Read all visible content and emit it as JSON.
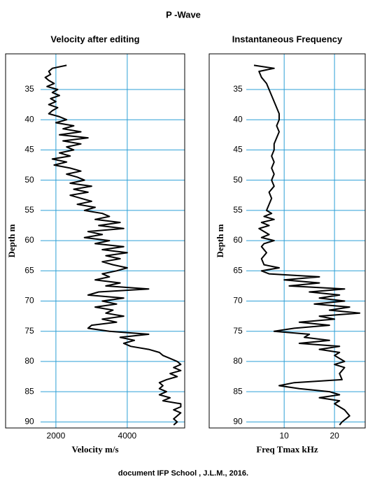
{
  "title": "P -Wave",
  "footer": "document IFP School , J.L.M., 2016.",
  "chart_data": [
    {
      "type": "line",
      "title": "Velocity after editing",
      "xlabel": "Depth m",
      "ylabel": "Velocity m/s",
      "xlim": [
        29.1,
        91
      ],
      "xticks": [
        35,
        40,
        45,
        50,
        55,
        60,
        65,
        70,
        75,
        80,
        85,
        90
      ],
      "ylim": [
        590,
        5610
      ],
      "yticks": [
        2000,
        4000
      ],
      "grid": true,
      "x": [
        31,
        31.5,
        32,
        32.5,
        33,
        33.5,
        34,
        34.5,
        35,
        35.5,
        36,
        36.5,
        37,
        37.5,
        38,
        38.5,
        39,
        39.5,
        40,
        40.5,
        41,
        41.5,
        42,
        42.5,
        43,
        43.5,
        44,
        44.5,
        45,
        45.5,
        46,
        46.5,
        47,
        47.5,
        48,
        48.5,
        49,
        49.5,
        50,
        50.5,
        51,
        51.5,
        52,
        52.5,
        53,
        53.5,
        54,
        54.5,
        55,
        55.5,
        56,
        56.5,
        57,
        57.5,
        58,
        58.5,
        59,
        59.5,
        60,
        60.5,
        61,
        61.5,
        62,
        62.5,
        63,
        63.5,
        64,
        64.5,
        65,
        65.5,
        66,
        66.5,
        67,
        67.5,
        68,
        68.5,
        69,
        69.5,
        70,
        70.5,
        71,
        71.5,
        72,
        72.5,
        73,
        73.5,
        74,
        74.5,
        75,
        75.5,
        76,
        76.5,
        77,
        77.5,
        78,
        78.5,
        79,
        79.5,
        80,
        80.5,
        81,
        81.5,
        82,
        82.5,
        83,
        83.5,
        84,
        84.5,
        85,
        85.5,
        86,
        86.5,
        87,
        87.5,
        88,
        88.5,
        89,
        89.5,
        90,
        90.5
      ],
      "series": [
        {
          "color": "#000000",
          "values": [
            2300,
            1900,
            1800,
            1850,
            1700,
            1800,
            1950,
            1750,
            2050,
            1900,
            2100,
            1850,
            2000,
            1800,
            2050,
            1900,
            1800,
            2100,
            2300,
            2000,
            2500,
            2200,
            2700,
            2100,
            2900,
            2200,
            2700,
            2300,
            2500,
            2100,
            2400,
            1900,
            2300,
            1950,
            2400,
            2700,
            2300,
            2600,
            2800,
            2400,
            3000,
            2500,
            2900,
            2400,
            2700,
            3000,
            2600,
            3100,
            2800,
            3300,
            3500,
            3100,
            3800,
            3200,
            3900,
            2900,
            3300,
            2800,
            3500,
            3100,
            3900,
            3300,
            4000,
            3400,
            3800,
            3300,
            3600,
            4000,
            3700,
            3300,
            3500,
            3100,
            3800,
            3400,
            4600,
            3200,
            2900,
            3900,
            3300,
            3700,
            3100,
            3600,
            3400,
            3900,
            3300,
            3700,
            3000,
            2900,
            3500,
            4600,
            3800,
            4200,
            3900,
            4100,
            4600,
            4900,
            5000,
            5200,
            5400,
            5500,
            5300,
            5500,
            5200,
            5400,
            5100,
            4900,
            5000,
            4900,
            5100,
            4900,
            5200,
            5000,
            5500,
            5500,
            5300,
            5500,
            5400,
            5300,
            5400,
            5300
          ]
        }
      ]
    },
    {
      "type": "line",
      "title": "Instantaneous Frequency",
      "xlabel": "Depth m",
      "ylabel": "Freq Tmax kHz",
      "xlim": [
        29.1,
        91
      ],
      "xticks": [
        35,
        40,
        45,
        50,
        55,
        60,
        65,
        70,
        75,
        80,
        85,
        90
      ],
      "ylim": [
        -4.9,
        26.1
      ],
      "yticks": [
        10,
        20
      ],
      "grid": true,
      "x": [
        31,
        31.5,
        32,
        33,
        34,
        35,
        36,
        37,
        38,
        39,
        40,
        41,
        42,
        43,
        44,
        45,
        46,
        47,
        48,
        49,
        50,
        51,
        52,
        53,
        54,
        55,
        55.5,
        56,
        56.5,
        57,
        57.5,
        58,
        58.5,
        59,
        59.5,
        60,
        60.5,
        61,
        62,
        63,
        64,
        64.5,
        65,
        65.5,
        66,
        66.5,
        67,
        67.5,
        68,
        68.5,
        69,
        69.5,
        70,
        70.5,
        71,
        71.5,
        72,
        72.5,
        73,
        73.5,
        74,
        74.5,
        75,
        75.5,
        76,
        76.5,
        77,
        77.5,
        78,
        78.5,
        79,
        80,
        80.5,
        81,
        82,
        83,
        83.5,
        84,
        84.5,
        85,
        85.5,
        86,
        86.5,
        87,
        88,
        89,
        90,
        90.5
      ],
      "series": [
        {
          "color": "#000000",
          "values": [
            4,
            8,
            5,
            5.5,
            6.5,
            7,
            7.5,
            8,
            8.5,
            9,
            9,
            8.5,
            9,
            8.5,
            8,
            8,
            7.5,
            8,
            7.5,
            8,
            7.5,
            8,
            7,
            7.5,
            7,
            6.5,
            7.5,
            6,
            8,
            5.5,
            7,
            5,
            6,
            7,
            5.5,
            8,
            6,
            5.5,
            6.5,
            5.5,
            6,
            9,
            5.5,
            7,
            17,
            10,
            17,
            11,
            22,
            15,
            21,
            17,
            22,
            16,
            23,
            19,
            25,
            17,
            20,
            13,
            19,
            12,
            8,
            15,
            14,
            19,
            13,
            21,
            17,
            21,
            20,
            22,
            20,
            22,
            21,
            21.5,
            12,
            9,
            13,
            19,
            21,
            17,
            21,
            20,
            22,
            23,
            21.5,
            21
          ]
        }
      ]
    }
  ]
}
